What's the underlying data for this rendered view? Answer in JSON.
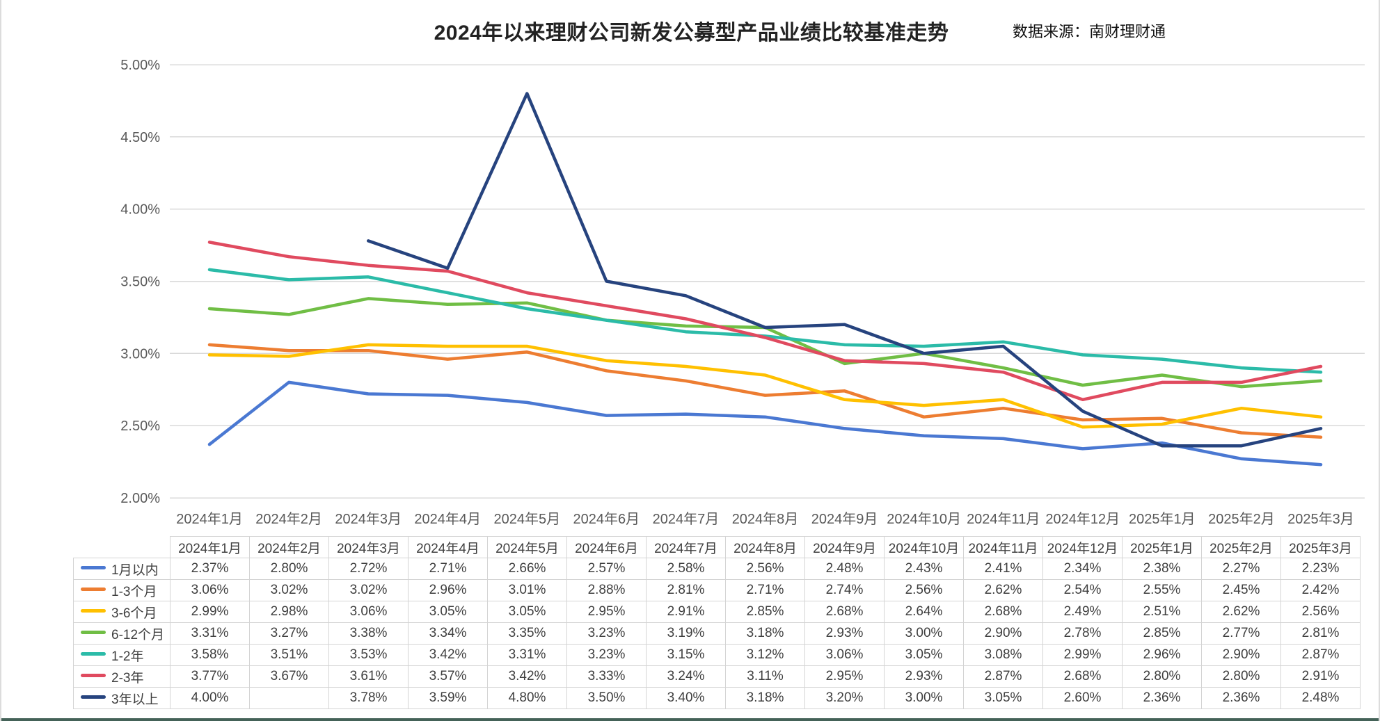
{
  "header": {
    "title": "2024年以来理财公司新发公募型产品业绩比较基准走势",
    "source": "数据来源：南财理财通"
  },
  "chart_data": {
    "type": "line",
    "title": "2024年以来理财公司新发公募型产品业绩比较基准走势",
    "xlabel": "",
    "ylabel": "",
    "ylim": [
      2.0,
      5.0
    ],
    "ytick_step": 0.5,
    "yticks": [
      "5.00%",
      "4.50%",
      "4.00%",
      "3.50%",
      "3.00%",
      "2.50%",
      "2.00%"
    ],
    "grid": true,
    "legend_position": "table-left",
    "categories": [
      "2024年1月",
      "2024年2月",
      "2024年3月",
      "2024年4月",
      "2024年5月",
      "2024年6月",
      "2024年7月",
      "2024年8月",
      "2024年9月",
      "2024年10月",
      "2024年11月",
      "2024年12月",
      "2025年1月",
      "2025年2月",
      "2025年3月"
    ],
    "series": [
      {
        "name": "1月以内",
        "color": "#4A78D2",
        "values": [
          2.37,
          2.8,
          2.72,
          2.71,
          2.66,
          2.57,
          2.58,
          2.56,
          2.48,
          2.43,
          2.41,
          2.34,
          2.38,
          2.27,
          2.23
        ]
      },
      {
        "name": "1-3个月",
        "color": "#ED7D31",
        "values": [
          3.06,
          3.02,
          3.02,
          2.96,
          3.01,
          2.88,
          2.81,
          2.71,
          2.74,
          2.56,
          2.62,
          2.54,
          2.55,
          2.45,
          2.42
        ]
      },
      {
        "name": "3-6个月",
        "color": "#FFC000",
        "values": [
          2.99,
          2.98,
          3.06,
          3.05,
          3.05,
          2.95,
          2.91,
          2.85,
          2.68,
          2.64,
          2.68,
          2.49,
          2.51,
          2.62,
          2.56
        ]
      },
      {
        "name": "6-12个月",
        "color": "#70BE45",
        "values": [
          3.31,
          3.27,
          3.38,
          3.34,
          3.35,
          3.23,
          3.19,
          3.18,
          2.93,
          3.0,
          2.9,
          2.78,
          2.85,
          2.77,
          2.81
        ]
      },
      {
        "name": "1-2年",
        "color": "#2BBBA8",
        "values": [
          3.58,
          3.51,
          3.53,
          3.42,
          3.31,
          3.23,
          3.15,
          3.12,
          3.06,
          3.05,
          3.08,
          2.99,
          2.96,
          2.9,
          2.87
        ]
      },
      {
        "name": "2-3年",
        "color": "#E04A5F",
        "values": [
          3.77,
          3.67,
          3.61,
          3.57,
          3.42,
          3.33,
          3.24,
          3.11,
          2.95,
          2.93,
          2.87,
          2.68,
          2.8,
          2.8,
          2.91
        ]
      },
      {
        "name": "3年以上",
        "color": "#26437E",
        "values": [
          4.0,
          null,
          3.78,
          3.59,
          4.8,
          3.5,
          3.4,
          3.18,
          3.2,
          3.0,
          3.05,
          2.6,
          2.36,
          2.36,
          2.48
        ]
      }
    ],
    "value_format": "percent-2dp",
    "grid_color": "#d9d9d9",
    "axis_text_color": "#595959",
    "table_border_color": "#d4d4d4"
  }
}
